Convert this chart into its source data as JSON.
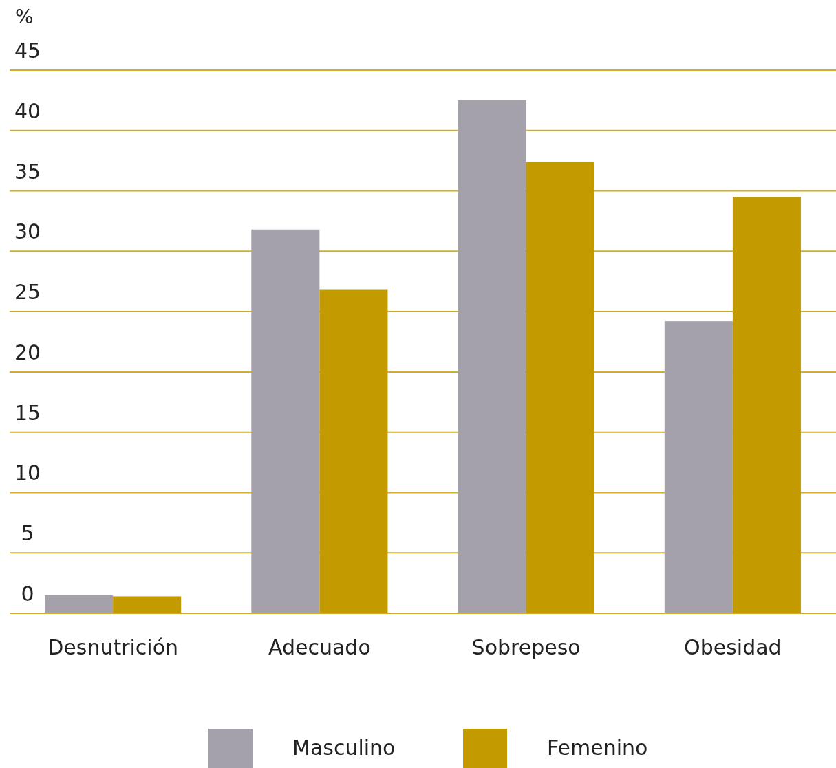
{
  "chart_data": {
    "type": "bar",
    "ylabel": "%",
    "categories": [
      "Desnutrición",
      "Adecuado",
      "Sobrepeso",
      "Obesidad"
    ],
    "series": [
      {
        "name": "Masculino",
        "color": "#a4a1aa",
        "values": [
          1.5,
          31.8,
          42.5,
          24.2
        ]
      },
      {
        "name": "Femenino",
        "color": "#c39b00",
        "values": [
          1.4,
          26.8,
          37.4,
          34.5
        ]
      }
    ],
    "ylim": [
      0,
      45
    ],
    "yticks": [
      0,
      5,
      10,
      15,
      20,
      25,
      30,
      35,
      40,
      45
    ],
    "grid": "y",
    "legend": "bottom"
  }
}
